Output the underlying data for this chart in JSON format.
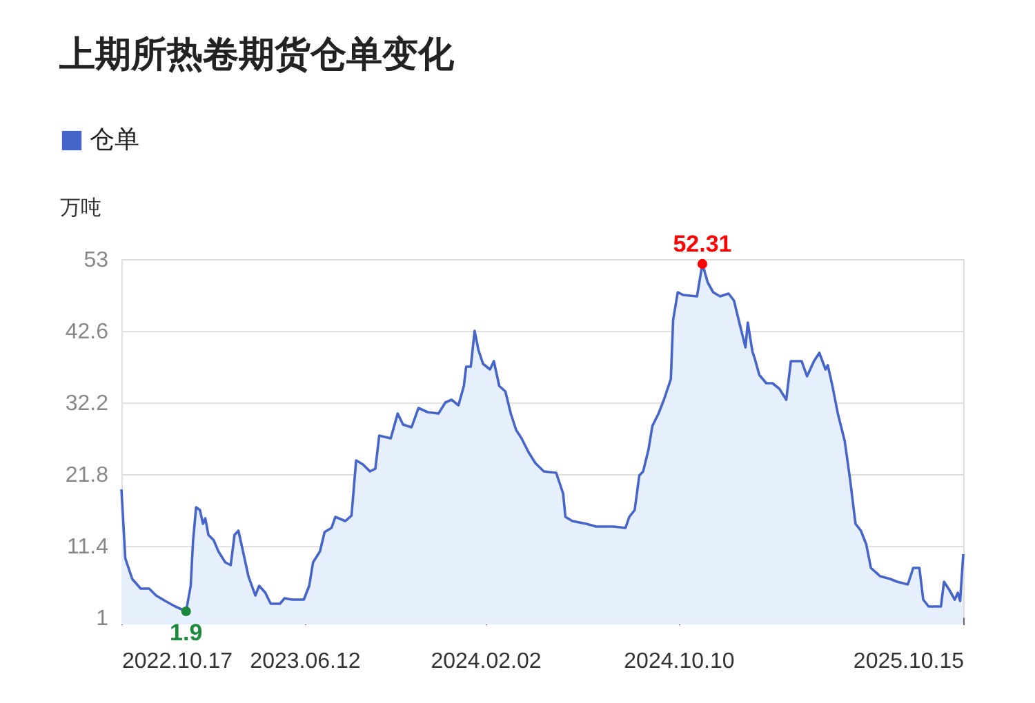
{
  "chart_data": {
    "type": "area",
    "title": "上期所热卷期货仓单变化",
    "ylabel": "万吨",
    "x": [
      "2022-10-17",
      "2022-10-22",
      "2022-10-31",
      "2022-11-11",
      "2022-11-22",
      "2022-12-01",
      "2022-12-13",
      "2022-12-26",
      "2023-01-09",
      "2023-01-15",
      "2023-01-18",
      "2023-01-22",
      "2023-01-27",
      "2023-01-31",
      "2023-02-03",
      "2023-02-07",
      "2023-02-14",
      "2023-02-20",
      "2023-03-01",
      "2023-03-08",
      "2023-03-13",
      "2023-03-18",
      "2023-03-24",
      "2023-03-31",
      "2023-04-09",
      "2023-04-14",
      "2023-04-22",
      "2023-04-29",
      "2023-05-11",
      "2023-05-17",
      "2023-05-27",
      "2023-06-11",
      "2023-06-18",
      "2023-06-23",
      "2023-07-02",
      "2023-07-08",
      "2023-07-17",
      "2023-07-22",
      "2023-08-04",
      "2023-08-12",
      "2023-08-18",
      "2023-08-27",
      "2023-09-05",
      "2023-09-12",
      "2023-09-17",
      "2023-10-02",
      "2023-10-11",
      "2023-10-18",
      "2023-10-29",
      "2023-11-07",
      "2023-11-19",
      "2023-12-03",
      "2023-12-12",
      "2023-12-20",
      "2023-12-29",
      "2024-01-05",
      "2024-01-08",
      "2024-01-14",
      "2024-01-19",
      "2024-01-24",
      "2024-01-30",
      "2024-02-08",
      "2024-02-13",
      "2024-02-20",
      "2024-02-28",
      "2024-03-06",
      "2024-03-13",
      "2024-03-20",
      "2024-03-29",
      "2024-04-07",
      "2024-04-18",
      "2024-05-04",
      "2024-05-13",
      "2024-05-16",
      "2024-05-25",
      "2024-06-12",
      "2024-06-25",
      "2024-07-18",
      "2024-08-02",
      "2024-08-07",
      "2024-08-14",
      "2024-08-20",
      "2024-08-25",
      "2024-09-01",
      "2024-09-06",
      "2024-09-14",
      "2024-09-21",
      "2024-09-30",
      "2024-10-03",
      "2024-10-09",
      "2024-10-16",
      "2024-11-03",
      "2024-11-10",
      "2024-11-17",
      "2024-11-24",
      "2024-12-03",
      "2024-12-14",
      "2024-12-21",
      "2024-12-28",
      "2025-01-05",
      "2025-01-08",
      "2025-01-14",
      "2025-01-17",
      "2025-01-23",
      "2025-02-01",
      "2025-02-09",
      "2025-02-18",
      "2025-02-27",
      "2025-03-05",
      "2025-03-10",
      "2025-03-19",
      "2025-03-26",
      "2025-04-04",
      "2025-04-11",
      "2025-04-19",
      "2025-04-22",
      "2025-04-28",
      "2025-05-05",
      "2025-05-14",
      "2025-05-21",
      "2025-05-28",
      "2025-06-04",
      "2025-06-11",
      "2025-06-17",
      "2025-06-29",
      "2025-07-12",
      "2025-07-21",
      "2025-08-04",
      "2025-08-11",
      "2025-08-19",
      "2025-08-24",
      "2025-08-31",
      "2025-09-16",
      "2025-09-20",
      "2025-09-27",
      "2025-10-04",
      "2025-10-08",
      "2025-10-11",
      "2025-10-15"
    ],
    "series": [
      {
        "name": "仓单",
        "color": "#4565c8",
        "values": [
          19.6,
          9.6,
          6.6,
          5.2,
          5.2,
          4.2,
          3.4,
          2.6,
          1.9,
          5.6,
          12,
          17,
          16.6,
          14.6,
          15.4,
          13,
          12.2,
          10.6,
          9,
          8.6,
          13,
          13.6,
          10.6,
          7,
          4.2,
          5.6,
          4.6,
          3,
          3,
          3.8,
          3.6,
          3.6,
          5.6,
          9,
          10.6,
          13.4,
          14,
          15.6,
          15,
          15.8,
          23.8,
          23.2,
          22.2,
          22.6,
          27.4,
          27,
          30.6,
          29,
          28.6,
          31.4,
          30.8,
          30.6,
          32.2,
          32.6,
          31.8,
          34.6,
          37.4,
          37.4,
          42.6,
          39.8,
          37.8,
          37,
          38.2,
          34.6,
          33.8,
          30.6,
          28.2,
          27,
          25,
          23.4,
          22.2,
          22,
          19,
          15.6,
          15,
          14.6,
          14.2,
          14.2,
          14,
          15.6,
          16.6,
          21.6,
          22.2,
          25.4,
          28.8,
          30.6,
          32.6,
          35.6,
          44.2,
          48.2,
          47.8,
          47.6,
          52.31,
          49.6,
          48.2,
          47.6,
          48,
          47,
          43.8,
          40.2,
          43.8,
          39.6,
          38.6,
          36.2,
          35,
          35,
          34.2,
          32.6,
          38.2,
          38.2,
          38.2,
          36,
          38.2,
          39.4,
          37,
          37.6,
          34.6,
          30.6,
          26.6,
          21,
          14.6,
          13.6,
          11.6,
          8.2,
          7,
          6.6,
          6.2,
          5.8,
          8.2,
          8.2,
          3.6,
          2.6,
          2.6,
          6.2,
          5,
          3.6,
          4.6,
          3.4,
          10.2
        ]
      },
      {
        "type": "scatter",
        "x": [
          "2023-01-09",
          "2024-11-10"
        ],
        "values": [
          1.9,
          52.31
        ],
        "colors": [
          "#1a8a3a",
          "#ff0000"
        ]
      }
    ],
    "annotations": [
      {
        "text": "52.31",
        "x": "2024-11-10",
        "y": 52.31
      },
      {
        "text": "1.9",
        "x": "2023-01-09",
        "y": 1.9
      }
    ],
    "xlim": [
      "2022-10-17",
      "2025-10-15"
    ],
    "xticks": [
      {
        "value": "2022-10-17",
        "label": "2022.10.17"
      },
      {
        "value": "2023-06-12",
        "label": "2023.06.12"
      },
      {
        "value": "2024-02-02",
        "label": "2024.02.02"
      },
      {
        "value": "2024-10-10",
        "label": "2024.10.10"
      },
      {
        "value": "2025-10-15",
        "label": "2025.10.15"
      }
    ],
    "ylim": [
      1,
      53
    ],
    "yticks": [
      1,
      11.4,
      21.8,
      32.2,
      42.6,
      53
    ],
    "grid": "y",
    "legend": "top left"
  }
}
